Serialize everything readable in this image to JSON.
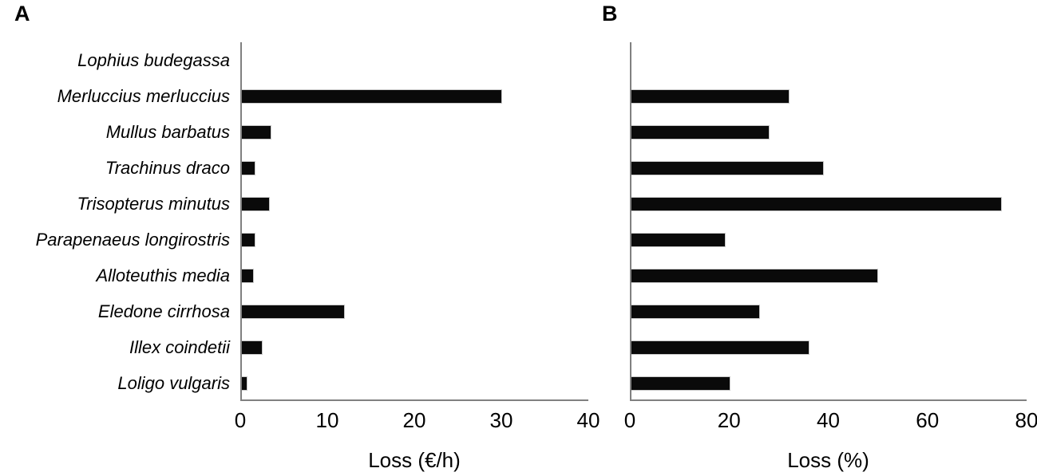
{
  "colors": {
    "background": "#ffffff",
    "bar": "#0a0a0a",
    "axis": "#808080",
    "text": "#000000"
  },
  "chart_data": [
    {
      "type": "bar",
      "orientation": "horizontal",
      "panel_label": "A",
      "xlabel": "Loss (€/h)",
      "categories": [
        "Lophius budegassa",
        "Merluccius merluccius",
        "Mullus barbatus",
        "Trachinus draco",
        "Trisopterus minutus",
        "Parapenaeus longirostris",
        "Alloteuthis media",
        "Eledone cirrhosa",
        "Illex coindetii",
        "Loligo vulgaris"
      ],
      "values": [
        0,
        30,
        3.4,
        1.6,
        3.2,
        1.6,
        1.4,
        11.9,
        2.4,
        0.6
      ],
      "xlim": [
        0,
        40
      ],
      "xticks": [
        0,
        10,
        20,
        30,
        40
      ],
      "grid": false,
      "legend": false,
      "category_labels_visible": true,
      "category_style": "italic"
    },
    {
      "type": "bar",
      "orientation": "horizontal",
      "panel_label": "B",
      "xlabel": "Loss (%)",
      "categories": [
        "Lophius budegassa",
        "Merluccius merluccius",
        "Mullus barbatus",
        "Trachinus draco",
        "Trisopterus minutus",
        "Parapenaeus longirostris",
        "Alloteuthis media",
        "Eledone cirrhosa",
        "Illex coindetii",
        "Loligo vulgaris"
      ],
      "values": [
        0,
        32,
        28,
        39,
        75,
        19,
        50,
        26,
        36,
        20
      ],
      "xlim": [
        0,
        80
      ],
      "xticks": [
        0,
        20,
        40,
        60,
        80
      ],
      "grid": false,
      "legend": false,
      "category_labels_visible": false,
      "category_style": "italic"
    }
  ]
}
